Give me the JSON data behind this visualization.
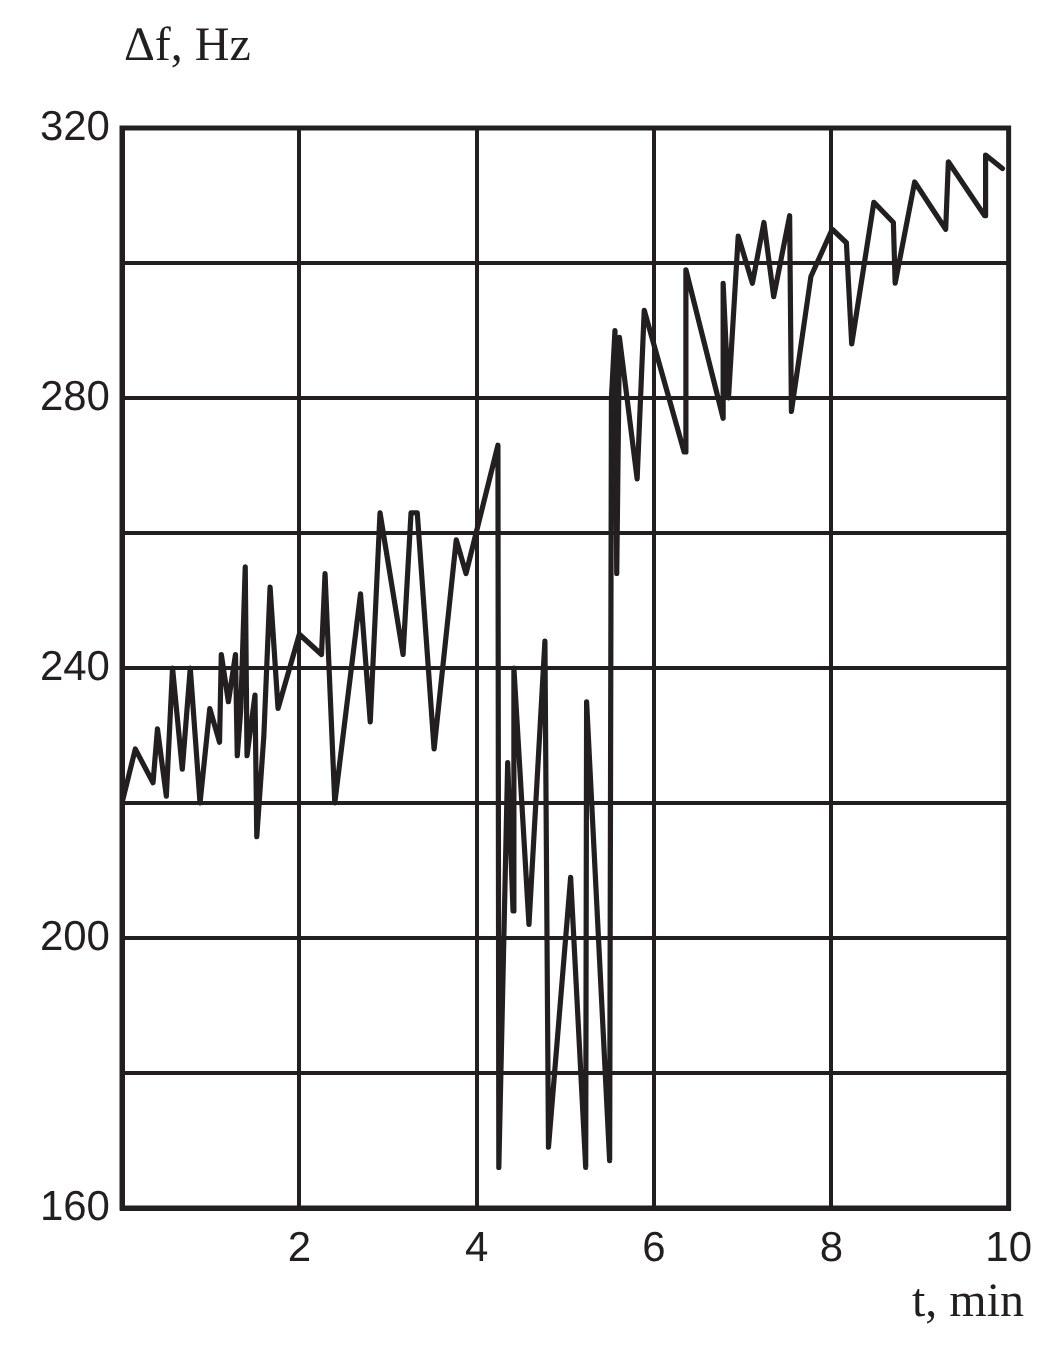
{
  "chart_data": {
    "type": "line",
    "xlabel": "t, min",
    "ylabel": "Δf, Hz",
    "x": [
      0,
      0.15,
      0.35,
      0.4,
      0.5,
      0.57,
      0.68,
      0.77,
      0.88,
      0.99,
      1.1,
      1.12,
      1.2,
      1.28,
      1.3,
      1.34,
      1.39,
      1.41,
      1.5,
      1.52,
      1.6,
      1.67,
      1.76,
      2.0,
      2.25,
      2.29,
      2.4,
      2.69,
      2.8,
      2.91,
      3.17,
      3.26,
      3.33,
      3.52,
      3.77,
      3.88,
      4.24,
      4.25,
      4.35,
      4.41,
      4.42,
      4.59,
      4.77,
      4.81,
      5.06,
      5.23,
      5.24,
      5.5,
      5.52,
      5.56,
      5.58,
      5.61,
      5.81,
      5.89,
      6.34,
      6.36,
      6.78,
      6.78,
      6.84,
      6.95,
      7.11,
      7.24,
      7.35,
      7.53,
      7.55,
      7.77,
      8.01,
      8.17,
      8.23,
      8.48,
      8.7,
      8.72,
      8.94,
      9.29,
      9.32,
      9.73,
      9.74,
      9.93
    ],
    "series": [
      {
        "color": "#231f20",
        "values": [
          220,
          228,
          223,
          231,
          221,
          240,
          225,
          240,
          220,
          234,
          229,
          242,
          235,
          242,
          227,
          234,
          255,
          227,
          236,
          215,
          230,
          252,
          234,
          245,
          242,
          254,
          220,
          251,
          232,
          263,
          242,
          263,
          263,
          228,
          259,
          254,
          273,
          166,
          226,
          204,
          240,
          202,
          244,
          169,
          209,
          166,
          235,
          167,
          280,
          290,
          254,
          289,
          268,
          293,
          272,
          299,
          277,
          297,
          280,
          304,
          297,
          306,
          295,
          307,
          278,
          298,
          305,
          303,
          288,
          309,
          306,
          297,
          312,
          305,
          315,
          307,
          316,
          314
        ]
      }
    ],
    "xlim": [
      0,
      10
    ],
    "xticks": [
      {
        "value": 0,
        "label": null
      },
      2,
      4,
      6,
      8,
      10
    ],
    "ylim": [
      160,
      320
    ],
    "yticks": [
      160,
      {
        "value": 180,
        "label": null
      },
      200,
      {
        "value": 220,
        "label": null
      },
      240,
      {
        "value": 260,
        "label": null
      },
      280,
      {
        "value": 300,
        "label": null
      },
      320
    ],
    "grid": true,
    "legend": false,
    "marker": "none",
    "line_style": "solid"
  }
}
